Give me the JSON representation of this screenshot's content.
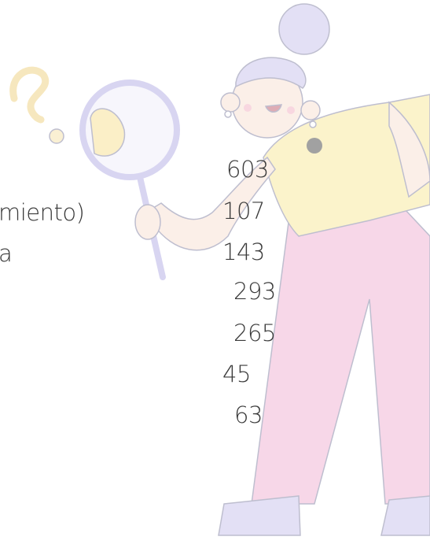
{
  "left_text": [
    "miento)",
    "a"
  ],
  "numbers": [
    603,
    107,
    143,
    293,
    265,
    45,
    63
  ]
}
